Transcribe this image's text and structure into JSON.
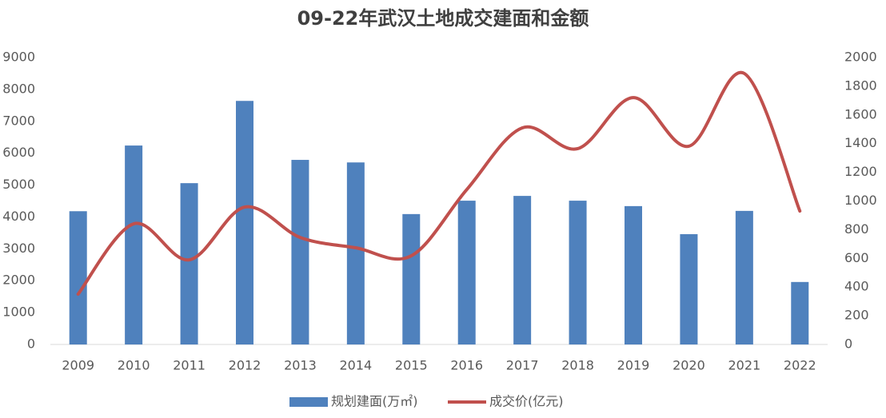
{
  "chart_data": {
    "type": "bar-line",
    "title": "09-22年武汉土地成交建面和金额",
    "categories": [
      "2009",
      "2010",
      "2011",
      "2012",
      "2013",
      "2014",
      "2015",
      "2016",
      "2017",
      "2018",
      "2019",
      "2020",
      "2021",
      "2022"
    ],
    "series": [
      {
        "name": "规划建面(万㎡)",
        "type": "bar",
        "color": "#4f81bd",
        "values": [
          4180,
          6240,
          5060,
          7640,
          5790,
          5710,
          4090,
          4510,
          4660,
          4510,
          4340,
          3460,
          4190,
          1960
        ]
      },
      {
        "name": "成交价(亿元)",
        "type": "line",
        "axis": "y2",
        "color": "#c0504d",
        "values": [
          351,
          841,
          590,
          958,
          746,
          674,
          618,
          1080,
          1510,
          1365,
          1721,
          1382,
          1889,
          930
        ]
      }
    ],
    "ylim": [
      0,
      9000
    ],
    "yticks": [
      0,
      1000,
      2000,
      3000,
      4000,
      5000,
      6000,
      7000,
      8000,
      9000
    ],
    "y2lim": [
      0,
      2000
    ],
    "y2ticks": [
      0,
      200,
      400,
      600,
      800,
      1000,
      1200,
      1400,
      1600,
      1800,
      2000
    ],
    "legend": "bottom"
  }
}
